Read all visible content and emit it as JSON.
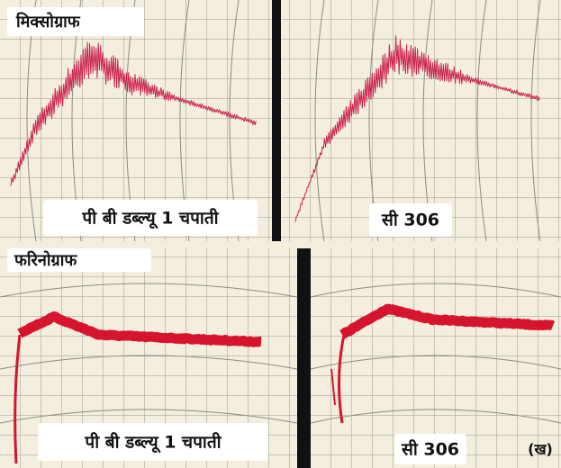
{
  "figure_label": "(ख)",
  "rows": [
    {
      "title": "मिक्सोग्राफ",
      "panels": [
        {
          "label": "पी बी डब्ल्यू 1 चपाती"
        },
        {
          "label": "सी 306"
        }
      ]
    },
    {
      "title": "फरिनोग्राफ",
      "panels": [
        {
          "label": "पी बी डब्ल्यू 1 चपाती"
        },
        {
          "label": "सी 306"
        }
      ]
    }
  ]
}
